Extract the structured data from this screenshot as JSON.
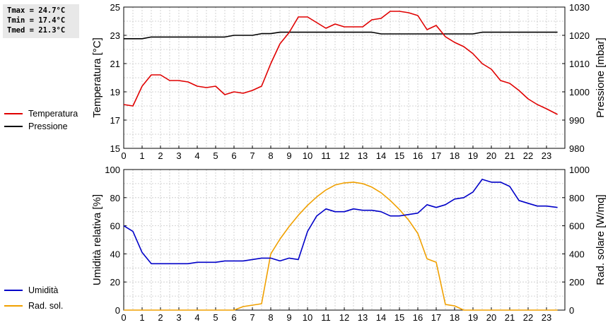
{
  "stats": [
    "Tmax = 24.7°C",
    "Tmin = 17.4°C",
    "Tmed = 21.3°C"
  ],
  "colors": {
    "temperatura": "#e00000",
    "pressione": "#000000",
    "umidita": "#0000c8",
    "radsol": "#f0a000"
  },
  "legend_top": [
    "Temperatura",
    "Pressione"
  ],
  "legend_bottom": [
    "Umidità",
    "Rad. sol."
  ],
  "chart_data": [
    {
      "type": "line",
      "x_range": [
        0,
        24
      ],
      "x_ticks": [
        "0",
        "1",
        "2",
        "3",
        "4",
        "5",
        "6",
        "7",
        "8",
        "9",
        "10",
        "11",
        "12",
        "13",
        "14",
        "15",
        "16",
        "17",
        "18",
        "19",
        "20",
        "21",
        "22",
        "23"
      ],
      "grid": true,
      "ylabel": "Temperatura [°C]",
      "ylim": [
        15,
        25
      ],
      "y_ticks": [
        "15",
        "17",
        "19",
        "21",
        "23",
        "25"
      ],
      "ylabel_right": "Pressione [mbar]",
      "ylim_right": [
        980,
        1030
      ],
      "y_ticks_right": [
        "980",
        "990",
        "1000",
        "1010",
        "1020",
        "1030"
      ],
      "series": [
        {
          "name": "Temperatura",
          "axis": "left",
          "points": [
            [
              0,
              18.1
            ],
            [
              0.5,
              18.0
            ],
            [
              1.0,
              19.4
            ],
            [
              1.5,
              20.2
            ],
            [
              2.0,
              20.2
            ],
            [
              2.5,
              19.8
            ],
            [
              3.0,
              19.8
            ],
            [
              3.5,
              19.7
            ],
            [
              4.0,
              19.4
            ],
            [
              4.5,
              19.3
            ],
            [
              5.0,
              19.4
            ],
            [
              5.5,
              18.8
            ],
            [
              6.0,
              19.0
            ],
            [
              6.5,
              18.9
            ],
            [
              7.0,
              19.1
            ],
            [
              7.5,
              19.4
            ],
            [
              8.0,
              21.0
            ],
            [
              8.5,
              22.4
            ],
            [
              9.0,
              23.2
            ],
            [
              9.5,
              24.3
            ],
            [
              10.0,
              24.3
            ],
            [
              10.5,
              23.9
            ],
            [
              11.0,
              23.5
            ],
            [
              11.5,
              23.8
            ],
            [
              12.0,
              23.6
            ],
            [
              12.5,
              23.6
            ],
            [
              13.0,
              23.6
            ],
            [
              13.5,
              24.1
            ],
            [
              14.0,
              24.2
            ],
            [
              14.5,
              24.7
            ],
            [
              15.0,
              24.7
            ],
            [
              15.5,
              24.6
            ],
            [
              16.0,
              24.4
            ],
            [
              16.5,
              23.4
            ],
            [
              17.0,
              23.7
            ],
            [
              17.5,
              22.9
            ],
            [
              18.0,
              22.5
            ],
            [
              18.5,
              22.2
            ],
            [
              19.0,
              21.7
            ],
            [
              19.5,
              21.0
            ],
            [
              20.0,
              20.6
            ],
            [
              20.5,
              19.8
            ],
            [
              21.0,
              19.6
            ],
            [
              21.5,
              19.1
            ],
            [
              22.0,
              18.5
            ],
            [
              22.5,
              18.1
            ],
            [
              23.0,
              17.8
            ],
            [
              23.6,
              17.4
            ]
          ]
        },
        {
          "name": "Pressione",
          "axis": "right",
          "points": [
            [
              0,
              1018.8
            ],
            [
              1.0,
              1018.8
            ],
            [
              1.5,
              1019.4
            ],
            [
              5.5,
              1019.4
            ],
            [
              6.0,
              1020.0
            ],
            [
              7.0,
              1020.0
            ],
            [
              7.5,
              1020.6
            ],
            [
              8.0,
              1020.6
            ],
            [
              8.5,
              1021.1
            ],
            [
              13.5,
              1021.1
            ],
            [
              14.0,
              1020.5
            ],
            [
              19.0,
              1020.5
            ],
            [
              19.5,
              1021.1
            ],
            [
              23.6,
              1021.1
            ]
          ]
        }
      ]
    },
    {
      "type": "line",
      "x_range": [
        0,
        24
      ],
      "x_ticks": [
        "0",
        "1",
        "2",
        "3",
        "4",
        "5",
        "6",
        "7",
        "8",
        "9",
        "10",
        "11",
        "12",
        "13",
        "14",
        "15",
        "16",
        "17",
        "18",
        "19",
        "20",
        "21",
        "22",
        "23"
      ],
      "grid": true,
      "ylabel": "Umidità relativa [%]",
      "ylim": [
        0,
        100
      ],
      "y_ticks": [
        "0",
        "20",
        "40",
        "60",
        "80",
        "100"
      ],
      "ylabel_right": "Rad. solare [W/mq]",
      "ylim_right": [
        0,
        1000
      ],
      "y_ticks_right": [
        "0",
        "200",
        "400",
        "600",
        "800",
        "1000"
      ],
      "series": [
        {
          "name": "Umidità",
          "axis": "left",
          "points": [
            [
              0,
              60
            ],
            [
              0.5,
              56
            ],
            [
              1.0,
              41
            ],
            [
              1.5,
              33
            ],
            [
              2.0,
              33
            ],
            [
              3.0,
              33
            ],
            [
              3.5,
              33
            ],
            [
              4.0,
              34
            ],
            [
              5.0,
              34
            ],
            [
              5.5,
              35
            ],
            [
              6.0,
              35
            ],
            [
              6.5,
              35
            ],
            [
              7.0,
              36
            ],
            [
              7.5,
              37
            ],
            [
              8.0,
              37
            ],
            [
              8.5,
              35
            ],
            [
              9.0,
              37
            ],
            [
              9.5,
              36
            ],
            [
              10.0,
              56
            ],
            [
              10.5,
              67
            ],
            [
              11.0,
              72
            ],
            [
              11.5,
              70
            ],
            [
              12.0,
              70
            ],
            [
              12.5,
              72
            ],
            [
              13.0,
              71
            ],
            [
              13.5,
              71
            ],
            [
              14.0,
              70
            ],
            [
              14.5,
              67
            ],
            [
              15.0,
              67
            ],
            [
              15.5,
              68
            ],
            [
              16.0,
              69
            ],
            [
              16.5,
              75
            ],
            [
              17.0,
              73
            ],
            [
              17.5,
              75
            ],
            [
              18.0,
              79
            ],
            [
              18.5,
              80
            ],
            [
              19.0,
              84
            ],
            [
              19.5,
              93
            ],
            [
              20.0,
              91
            ],
            [
              20.5,
              91
            ],
            [
              21.0,
              88
            ],
            [
              21.5,
              78
            ],
            [
              22.0,
              76
            ],
            [
              22.5,
              74
            ],
            [
              23.0,
              74
            ],
            [
              23.6,
              73
            ]
          ]
        },
        {
          "name": "Rad. sol.",
          "axis": "right",
          "points": [
            [
              0,
              0
            ],
            [
              6.0,
              0
            ],
            [
              6.5,
              25
            ],
            [
              7.0,
              35
            ],
            [
              7.5,
              45
            ],
            [
              8.0,
              400
            ],
            [
              8.5,
              505
            ],
            [
              9.0,
              595
            ],
            [
              9.5,
              675
            ],
            [
              10.0,
              745
            ],
            [
              10.5,
              805
            ],
            [
              11.0,
              855
            ],
            [
              11.5,
              890
            ],
            [
              12.0,
              905
            ],
            [
              12.5,
              910
            ],
            [
              13.0,
              900
            ],
            [
              13.5,
              875
            ],
            [
              14.0,
              835
            ],
            [
              14.5,
              780
            ],
            [
              15.0,
              715
            ],
            [
              15.5,
              640
            ],
            [
              16.0,
              545
            ],
            [
              16.5,
              365
            ],
            [
              17.0,
              340
            ],
            [
              17.5,
              40
            ],
            [
              18.0,
              30
            ],
            [
              18.5,
              0
            ],
            [
              23.6,
              0
            ]
          ]
        }
      ]
    }
  ]
}
